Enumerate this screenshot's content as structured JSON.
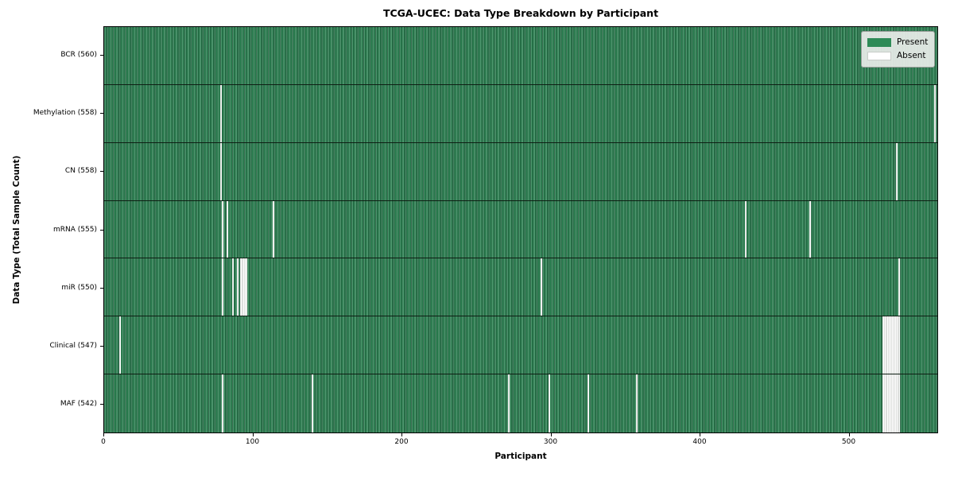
{
  "chart_data": {
    "type": "heatmap",
    "title": "TCGA-UCEC: Data Type Breakdown by Participant",
    "xlabel": "Participant",
    "ylabel": "Data Type (Total Sample Count)",
    "n_participants": 560,
    "x_ticks": [
      0,
      100,
      200,
      300,
      400,
      500
    ],
    "grid": "cell-edges-only",
    "legend_position": "upper right",
    "legend": [
      {
        "label": "Present",
        "color": "#2e8b57"
      },
      {
        "label": "Absent",
        "color": "#ffffff"
      }
    ],
    "colors": {
      "present": "#2e8b57",
      "absent": "#ffffff",
      "cell_edge": "#10281a"
    },
    "rows": [
      {
        "label": "BCR (560)",
        "present_count": 560,
        "absent_participants": []
      },
      {
        "label": "Methylation (558)",
        "present_count": 558,
        "absent_participants": [
          78,
          557
        ]
      },
      {
        "label": "CN (558)",
        "present_count": 558,
        "absent_participants": [
          78,
          531
        ]
      },
      {
        "label": "mRNA (555)",
        "present_count": 555,
        "absent_participants": [
          79,
          82,
          113,
          430,
          473
        ]
      },
      {
        "label": "miR (550)",
        "present_count": 550,
        "absent_participants": [
          79,
          86,
          89,
          91,
          92,
          93,
          94,
          95,
          293,
          533
        ]
      },
      {
        "label": "Clinical (547)",
        "present_count": 547,
        "absent_participants": [
          10,
          522,
          523,
          524,
          525,
          526,
          527,
          528,
          529,
          530,
          531,
          532,
          533
        ]
      },
      {
        "label": "MAF (542)",
        "present_count": 542,
        "absent_participants": [
          79,
          139,
          271,
          298,
          324,
          357,
          522,
          523,
          524,
          525,
          526,
          527,
          528,
          529,
          530,
          531,
          532,
          533
        ]
      }
    ]
  }
}
